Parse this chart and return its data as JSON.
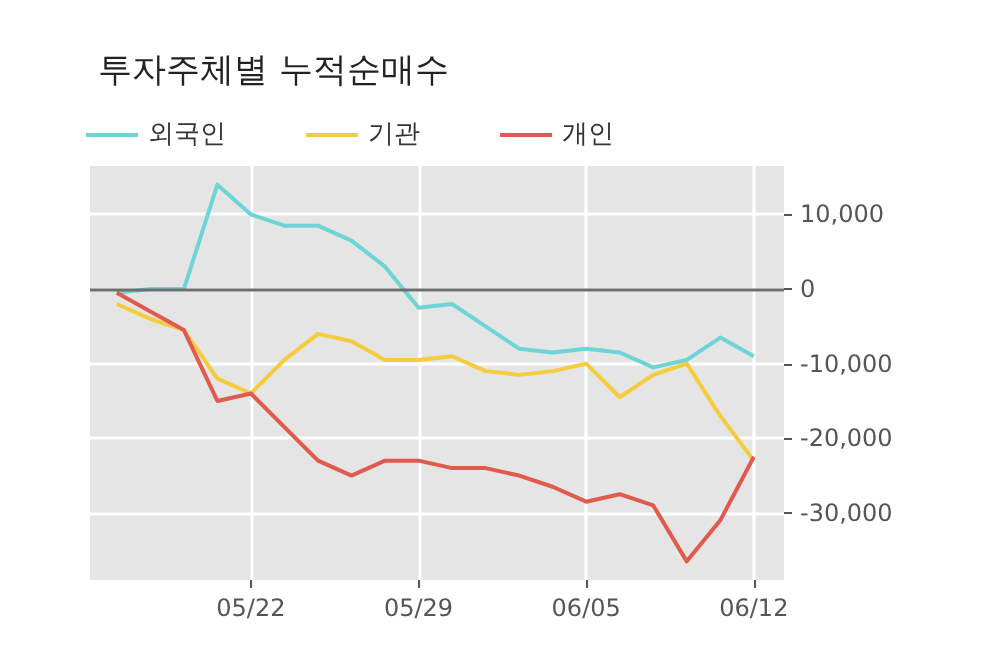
{
  "chart_data": {
    "type": "line",
    "title": "투자주체별 누적순매수",
    "categories": [
      null,
      null,
      null,
      null,
      "05/22",
      null,
      null,
      null,
      null,
      "05/29",
      null,
      null,
      null,
      null,
      "06/05",
      null,
      null,
      null,
      null,
      "06/12"
    ],
    "series": [
      {
        "name": "외국인",
        "color": "#6dd5d5",
        "values": [
          -500,
          0,
          0,
          14000,
          10000,
          8500,
          8500,
          6500,
          3000,
          -2500,
          -2000,
          -5000,
          -8000,
          -8500,
          -8000,
          -8500,
          -10500,
          -9500,
          -6500,
          -9000
        ]
      },
      {
        "name": "기관",
        "color": "#f5cc3c",
        "values": [
          -2000,
          -4000,
          -5500,
          -12000,
          -14000,
          -9500,
          -6000,
          -7000,
          -9500,
          -9500,
          -9000,
          -11000,
          -11500,
          -11000,
          -10000,
          -14500,
          -11500,
          -10000,
          -17000,
          -23000
        ]
      },
      {
        "name": "개인",
        "color": "#e05a4e",
        "values": [
          -500,
          -3000,
          -5500,
          -15000,
          -14000,
          -18500,
          -23000,
          -25000,
          -23000,
          -23000,
          -24000,
          -24000,
          -25000,
          -26500,
          -28500,
          -27500,
          -29000,
          -36500,
          -31000,
          -22500
        ]
      }
    ],
    "ylim": [
      -39000,
      16500
    ],
    "yticks": [
      {
        "value": -30000,
        "label": "-30,000"
      },
      {
        "value": -20000,
        "label": "-20,000"
      },
      {
        "value": -10000,
        "label": "-10,000"
      },
      0,
      {
        "value": 10000,
        "label": "10,000"
      }
    ],
    "ref_lines": [
      {
        "axis": "y",
        "value": 0,
        "color": "#6e6e6e"
      }
    ],
    "grid": true,
    "legend": "top left",
    "marker": "none",
    "line_style": "solid"
  }
}
